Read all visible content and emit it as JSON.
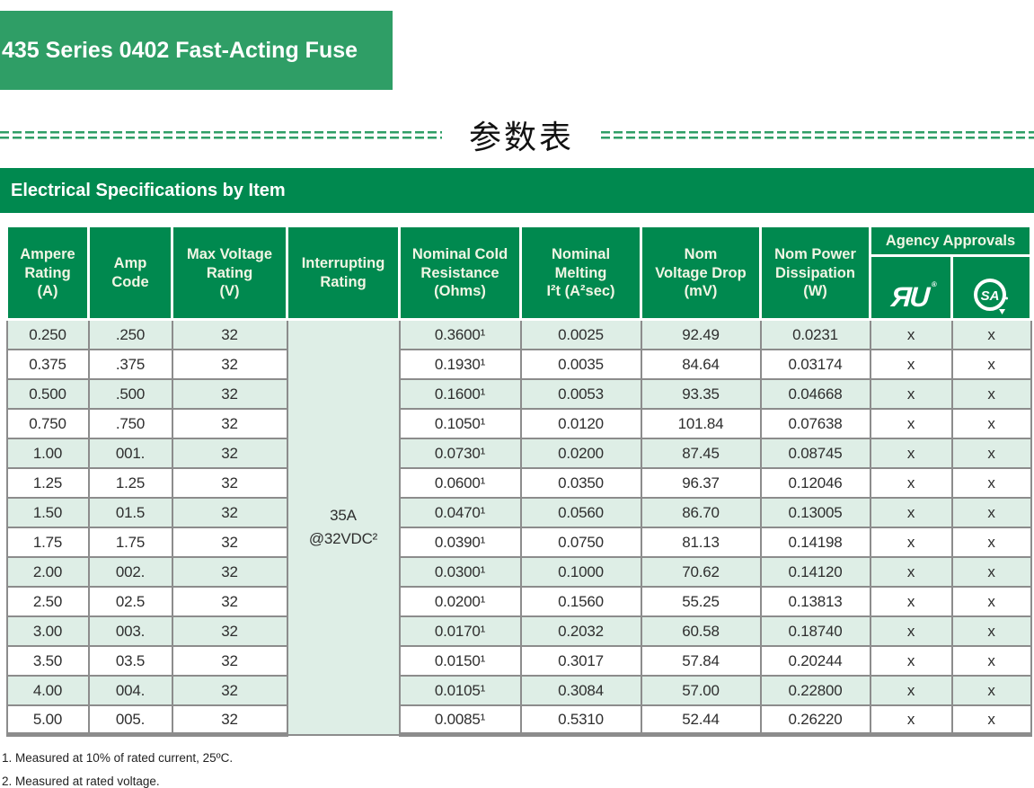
{
  "colors": {
    "banner_green": "#2f9e66",
    "table_green": "#00894f",
    "stripe_mint": "#deeee6",
    "border_gray": "#8c8c8c",
    "header_text": "#f1f5e4",
    "dash_green": "#2f9e66",
    "text_dark": "#2e2e2e"
  },
  "banner": {
    "title": "435 Series 0402 Fast-Acting Fuse"
  },
  "section_title": "参数表",
  "spec_section": {
    "title": "Electrical Specifications by Item"
  },
  "table": {
    "headers": [
      "Ampere\nRating\n(A)",
      "Amp\nCode",
      "Max Voltage\nRating\n(V)",
      "Interrupting\nRating",
      "Nominal Cold\nResistance\n(Ohms)",
      "Nominal\nMelting\nI²t (A²sec)",
      "Nom\nVoltage Drop\n(mV)",
      "Nom Power\nDissipation\n(W)",
      "Agency Approvals"
    ],
    "icons": {
      "ul": "ЯU",
      "csa_letters": "SA",
      "registered": "®"
    },
    "interrupting_rating": "35A\n@32VDC²",
    "rows": [
      [
        "0.250",
        ".250",
        "32",
        "0.3600¹",
        "0.0025",
        "92.49",
        "0.0231",
        "x",
        "x"
      ],
      [
        "0.375",
        ".375",
        "32",
        "0.1930¹",
        "0.0035",
        "84.64",
        "0.03174",
        "x",
        "x"
      ],
      [
        "0.500",
        ".500",
        "32",
        "0.1600¹",
        "0.0053",
        "93.35",
        "0.04668",
        "x",
        "x"
      ],
      [
        "0.750",
        ".750",
        "32",
        "0.1050¹",
        "0.0120",
        "101.84",
        "0.07638",
        "x",
        "x"
      ],
      [
        "1.00",
        "001.",
        "32",
        "0.0730¹",
        "0.0200",
        "87.45",
        "0.08745",
        "x",
        "x"
      ],
      [
        "1.25",
        "1.25",
        "32",
        "0.0600¹",
        "0.0350",
        "96.37",
        "0.12046",
        "x",
        "x"
      ],
      [
        "1.50",
        "01.5",
        "32",
        "0.0470¹",
        "0.0560",
        "86.70",
        "0.13005",
        "x",
        "x"
      ],
      [
        "1.75",
        "1.75",
        "32",
        "0.0390¹",
        "0.0750",
        "81.13",
        "0.14198",
        "x",
        "x"
      ],
      [
        "2.00",
        "002.",
        "32",
        "0.0300¹",
        "0.1000",
        "70.62",
        "0.14120",
        "x",
        "x"
      ],
      [
        "2.50",
        "02.5",
        "32",
        "0.0200¹",
        "0.1560",
        "55.25",
        "0.13813",
        "x",
        "x"
      ],
      [
        "3.00",
        "003.",
        "32",
        "0.0170¹",
        "0.2032",
        "60.58",
        "0.18740",
        "x",
        "x"
      ],
      [
        "3.50",
        "03.5",
        "32",
        "0.0150¹",
        "0.3017",
        "57.84",
        "0.20244",
        "x",
        "x"
      ],
      [
        "4.00",
        "004.",
        "32",
        "0.0105¹",
        "0.3084",
        "57.00",
        "0.22800",
        "x",
        "x"
      ],
      [
        "5.00",
        "005.",
        "32",
        "0.0085¹",
        "0.5310",
        "52.44",
        "0.26220",
        "x",
        "x"
      ]
    ]
  },
  "footnotes": [
    "1.  Measured at 10% of rated current, 25ºC.",
    "2. Measured at rated voltage."
  ]
}
